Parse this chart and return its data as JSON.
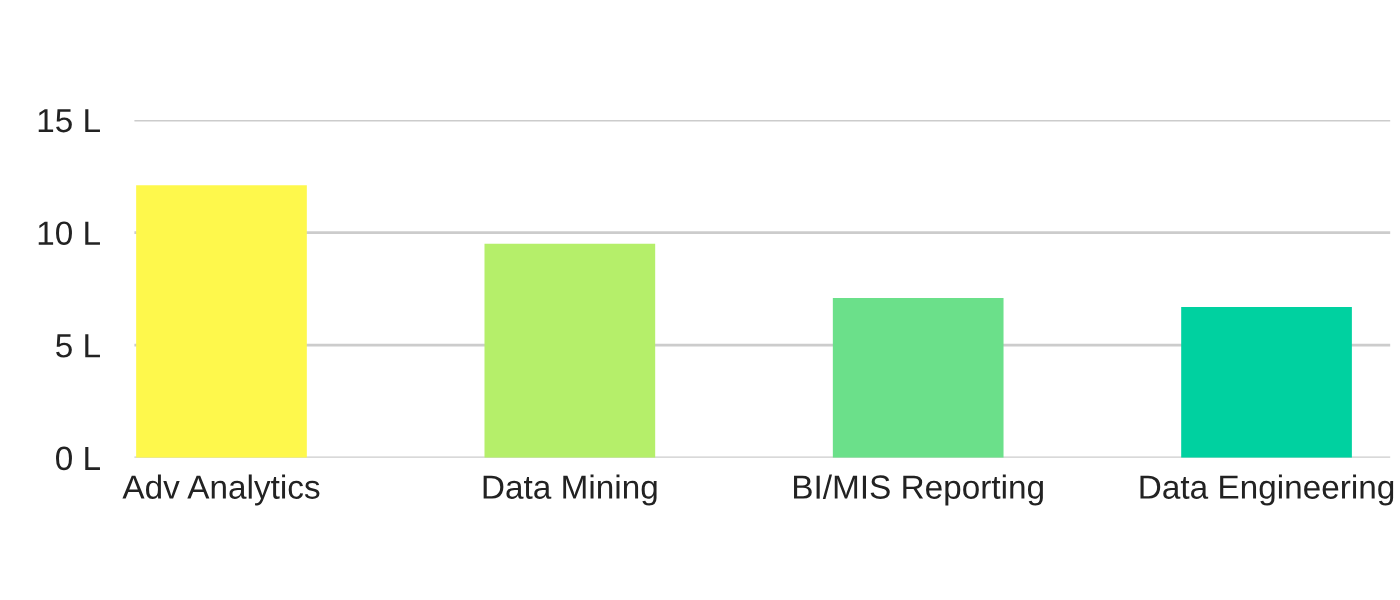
{
  "chart_data": {
    "type": "bar",
    "categories": [
      "Adv Analytics",
      "Data Mining",
      "BI/MIS Reporting",
      "Data Engineering"
    ],
    "values": [
      12.1,
      9.5,
      7.1,
      6.7
    ],
    "colors": [
      "#fef84c",
      "#b5ef6a",
      "#6be08a",
      "#00d1a0"
    ],
    "ylim": [
      0,
      15
    ],
    "yticks": [
      {
        "value": 0,
        "label": "0 L"
      },
      {
        "value": 5,
        "label": "5 L"
      },
      {
        "value": 10,
        "label": "10 L"
      },
      {
        "value": 15,
        "label": "15 L"
      }
    ],
    "grid": "y",
    "legend": false
  }
}
